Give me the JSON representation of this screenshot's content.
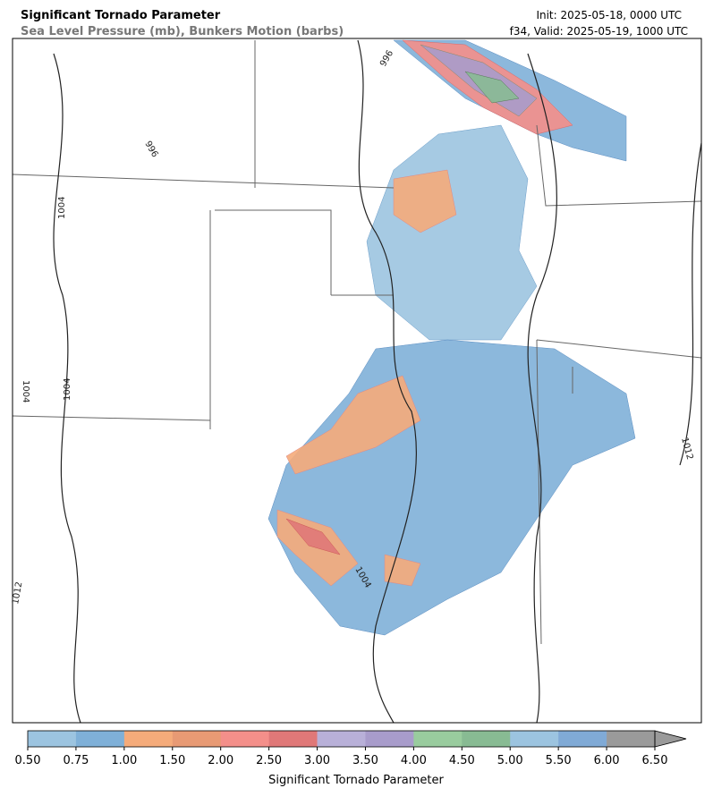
{
  "header": {
    "title": "Significant Tornado Parameter",
    "subtitle": "Sea Level Pressure (mb), Bunkers Motion (barbs)",
    "init": "Init: 2025-05-18, 0000 UTC",
    "valid": "f34, Valid: 2025-05-19, 1000 UTC"
  },
  "map": {
    "contour_labels": [
      "996",
      "996",
      "1004",
      "1004",
      "1004",
      "1004",
      "1012",
      "1012"
    ]
  },
  "colorbar": {
    "label": "Significant Tornado Parameter",
    "ticks": [
      {
        "value": 0.5,
        "label": "0.50"
      },
      {
        "value": 0.75,
        "label": "0.75"
      },
      {
        "value": 1,
        "label": "1.00"
      },
      {
        "value": 1.5,
        "label": "1.50"
      },
      {
        "value": 2,
        "label": "2.00"
      },
      {
        "value": 2.5,
        "label": "2.50"
      },
      {
        "value": 3,
        "label": "3.00"
      },
      {
        "value": 3.5,
        "label": "3.50"
      },
      {
        "value": 4,
        "label": "4.00"
      },
      {
        "value": 4.5,
        "label": "4.50"
      },
      {
        "value": 5,
        "label": "5.00"
      },
      {
        "value": 5.5,
        "label": "5.50"
      },
      {
        "value": 6,
        "label": "6.00"
      },
      {
        "value": 6.5,
        "label": "6.50"
      }
    ],
    "colors": [
      "#9cc4e0",
      "#7fb0d8",
      "#f5ab7a",
      "#e89a74",
      "#f48f8a",
      "#e07878",
      "#b8b0d8",
      "#a89ccb",
      "#99cc9e",
      "#88bb93",
      "#9cc4e0",
      "#80aad6",
      "#9a9a9a"
    ],
    "extend_color": "#9a9a9a"
  }
}
